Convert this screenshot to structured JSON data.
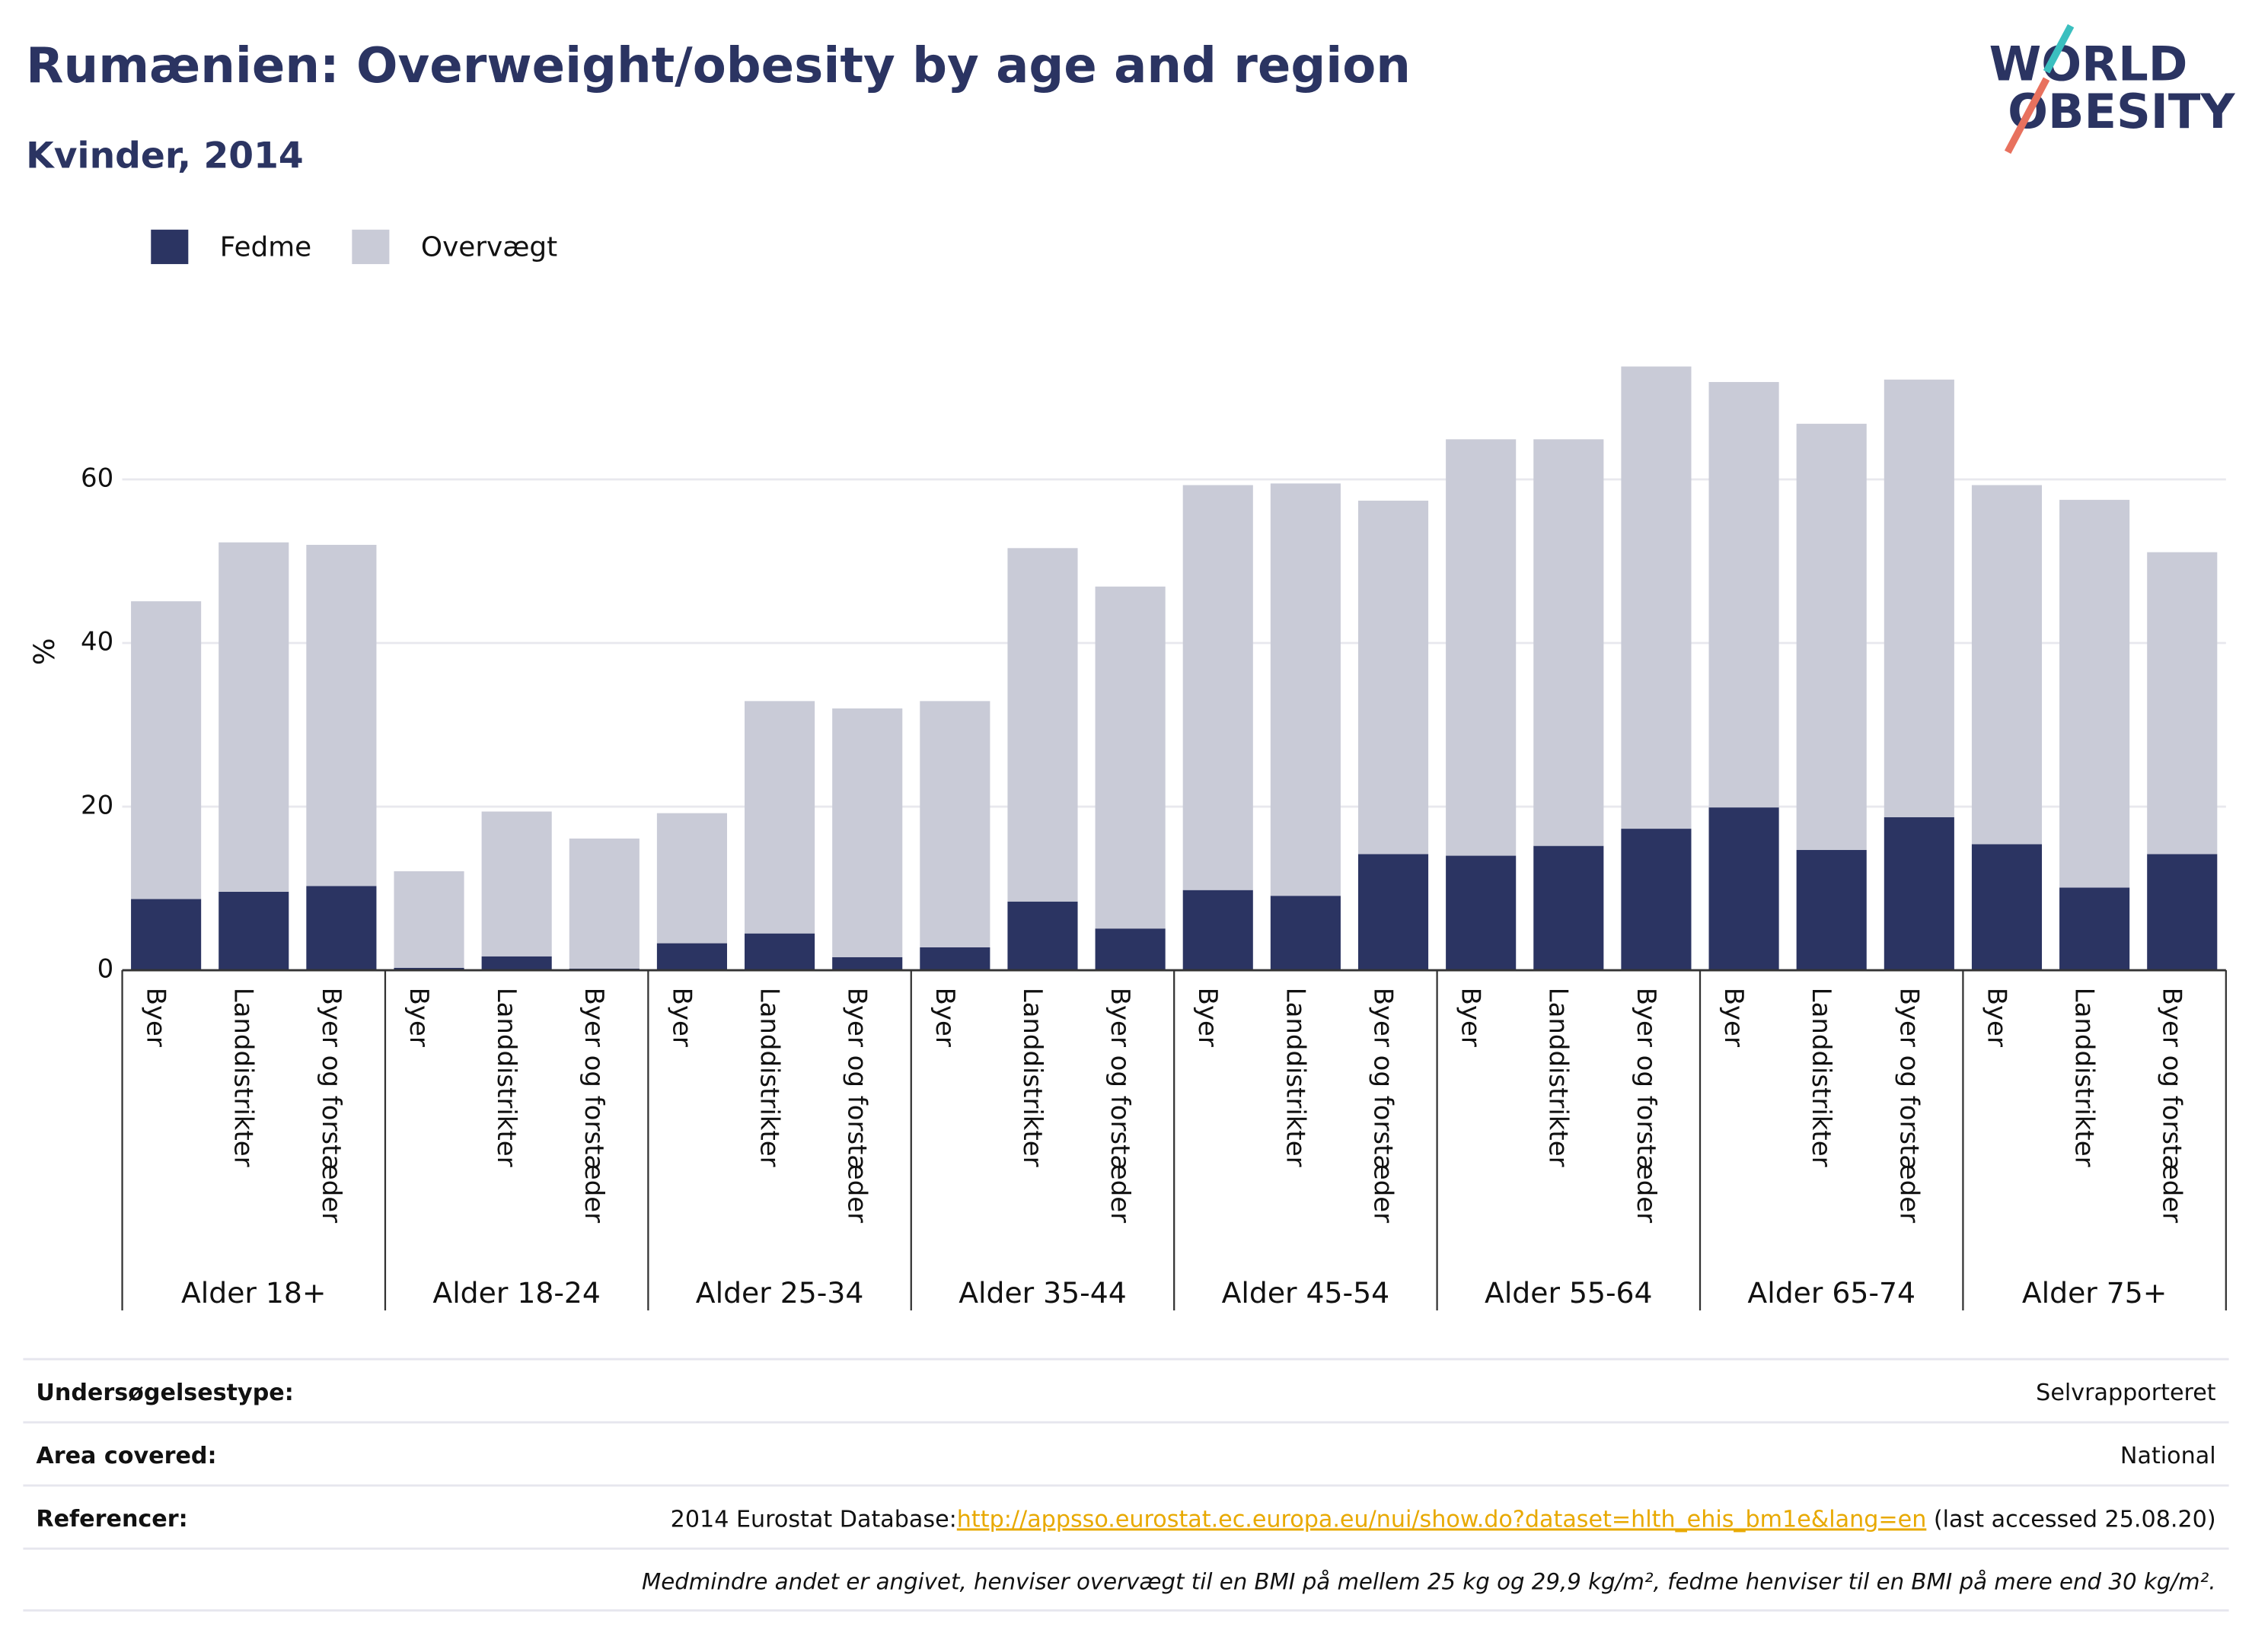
{
  "chart_data": {
    "type": "stacked_bar",
    "title": "Rumænien: Overweight/obesity by age and region",
    "subtitle": "Kvinder, 2014",
    "y_label": "%",
    "categories": [
      "Byer",
      "Landdistrikter",
      "Byer og forstæder",
      "Byer",
      "Landdistrikter",
      "Byer og forstæder",
      "Byer",
      "Landdistrikter",
      "Byer og forstæder",
      "Byer",
      "Landdistrikter",
      "Byer og forstæder",
      "Byer",
      "Landdistrikter",
      "Byer og forstæder",
      "Byer",
      "Landdistrikter",
      "Byer og forstæder",
      "Byer",
      "Landdistrikter",
      "Byer og forstæder",
      "Byer",
      "Landdistrikter",
      "Byer og forstæder"
    ],
    "groups": [
      "Alder 18+",
      "Alder 18-24",
      "Alder 25-34",
      "Alder 35-44",
      "Alder 45-54",
      "Alder 55-64",
      "Alder 65-74",
      "Alder 75+"
    ],
    "series": [
      {
        "name": "Fedme",
        "color": "#2b3462",
        "values": [
          8.7,
          9.6,
          10.3,
          0.3,
          1.7,
          0.2,
          3.3,
          4.5,
          1.6,
          2.8,
          8.4,
          5.1,
          9.8,
          9.1,
          14.2,
          14.0,
          15.2,
          17.3,
          19.9,
          14.7,
          18.7,
          15.4,
          10.1,
          14.2
        ]
      },
      {
        "name": "Overvægt",
        "color": "#c9cbd7",
        "values": [
          36.4,
          42.7,
          41.7,
          11.8,
          17.7,
          15.9,
          15.9,
          28.4,
          30.4,
          30.1,
          43.2,
          41.8,
          49.5,
          50.4,
          43.2,
          50.9,
          49.7,
          56.5,
          52.0,
          52.1,
          53.5,
          43.9,
          47.4,
          36.9
        ]
      }
    ],
    "ylim": [
      0,
      80
    ],
    "yticks": [
      0,
      20,
      40,
      60
    ],
    "grid": true,
    "legend": "top-left"
  },
  "logo": {
    "line1": "WORLD",
    "line2": "OBESITY"
  },
  "footer": {
    "rows": [
      {
        "label": "Undersøgelsestype:",
        "value": "Selvrapporteret"
      },
      {
        "label": "Area covered:",
        "value": "National"
      }
    ],
    "reference": {
      "label": "Referencer:",
      "prefix": "2014 Eurostat Database:",
      "link": "http://appsso.eurostat.ec.europa.eu/nui/show.do?dataset=hlth_ehis_bm1e&lang=en",
      "suffix": " (last accessed 25.08.20)"
    },
    "note": "Medmindre andet er angivet, henviser overvægt til en BMI på mellem 25 kg og 29,9 kg/m², fedme henviser til en BMI på mere end 30 kg/m²."
  }
}
